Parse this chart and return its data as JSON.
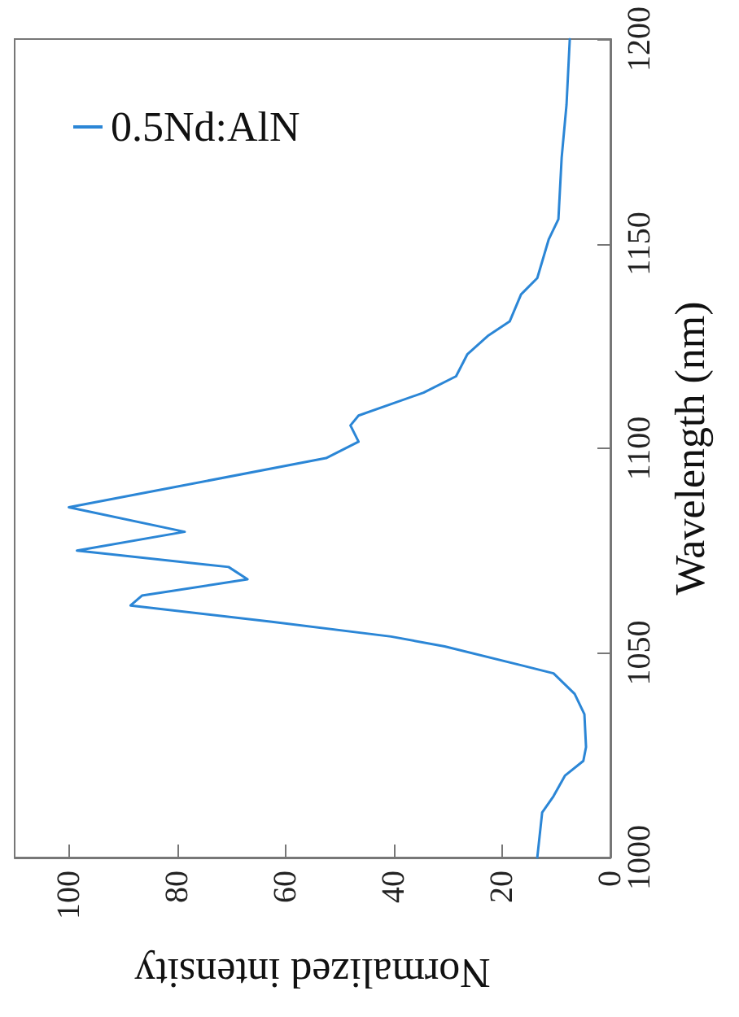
{
  "chart_data": {
    "type": "line",
    "xlabel": "Normalized intensity",
    "ylabel": "Wavelength (nm)",
    "xlim": [
      110,
      0
    ],
    "xticks": [
      100,
      80,
      60,
      40,
      20,
      0
    ],
    "ylim": [
      1000,
      1200
    ],
    "yticks": [
      1000,
      1050,
      1100,
      1150,
      1200
    ],
    "grid": false,
    "legend": "top left",
    "marker": "none",
    "line_style": "solid",
    "series": [
      {
        "name": "0.5Nd:AlN",
        "color": "#2b86d6",
        "x": [
          13.5,
          12.6,
          10.5,
          8.4,
          5,
          4.5,
          4.8,
          6.6,
          10.5,
          16.5,
          30.6,
          40.5,
          62.5,
          88.6,
          86.5,
          67,
          70.5,
          98.5,
          78.6,
          100,
          82.5,
          52.5,
          46.5,
          48,
          46.5,
          34.5,
          28.5,
          26.4,
          22.5,
          18.6,
          16.5,
          13.5,
          11.4,
          9.6,
          9,
          8.1,
          7.5
        ],
        "values": [
          1000,
          1011,
          1015,
          1020,
          1023.6,
          1027,
          1035,
          1040,
          1045,
          1047,
          1051.6,
          1054,
          1057.6,
          1061.6,
          1064,
          1068,
          1071,
          1075,
          1079.6,
          1085.6,
          1090,
          1097.6,
          1101.6,
          1105.6,
          1108,
          1113.6,
          1117.6,
          1123,
          1127.6,
          1131,
          1137.6,
          1141.6,
          1151,
          1156,
          1171,
          1184,
          1200
        ]
      }
    ]
  }
}
